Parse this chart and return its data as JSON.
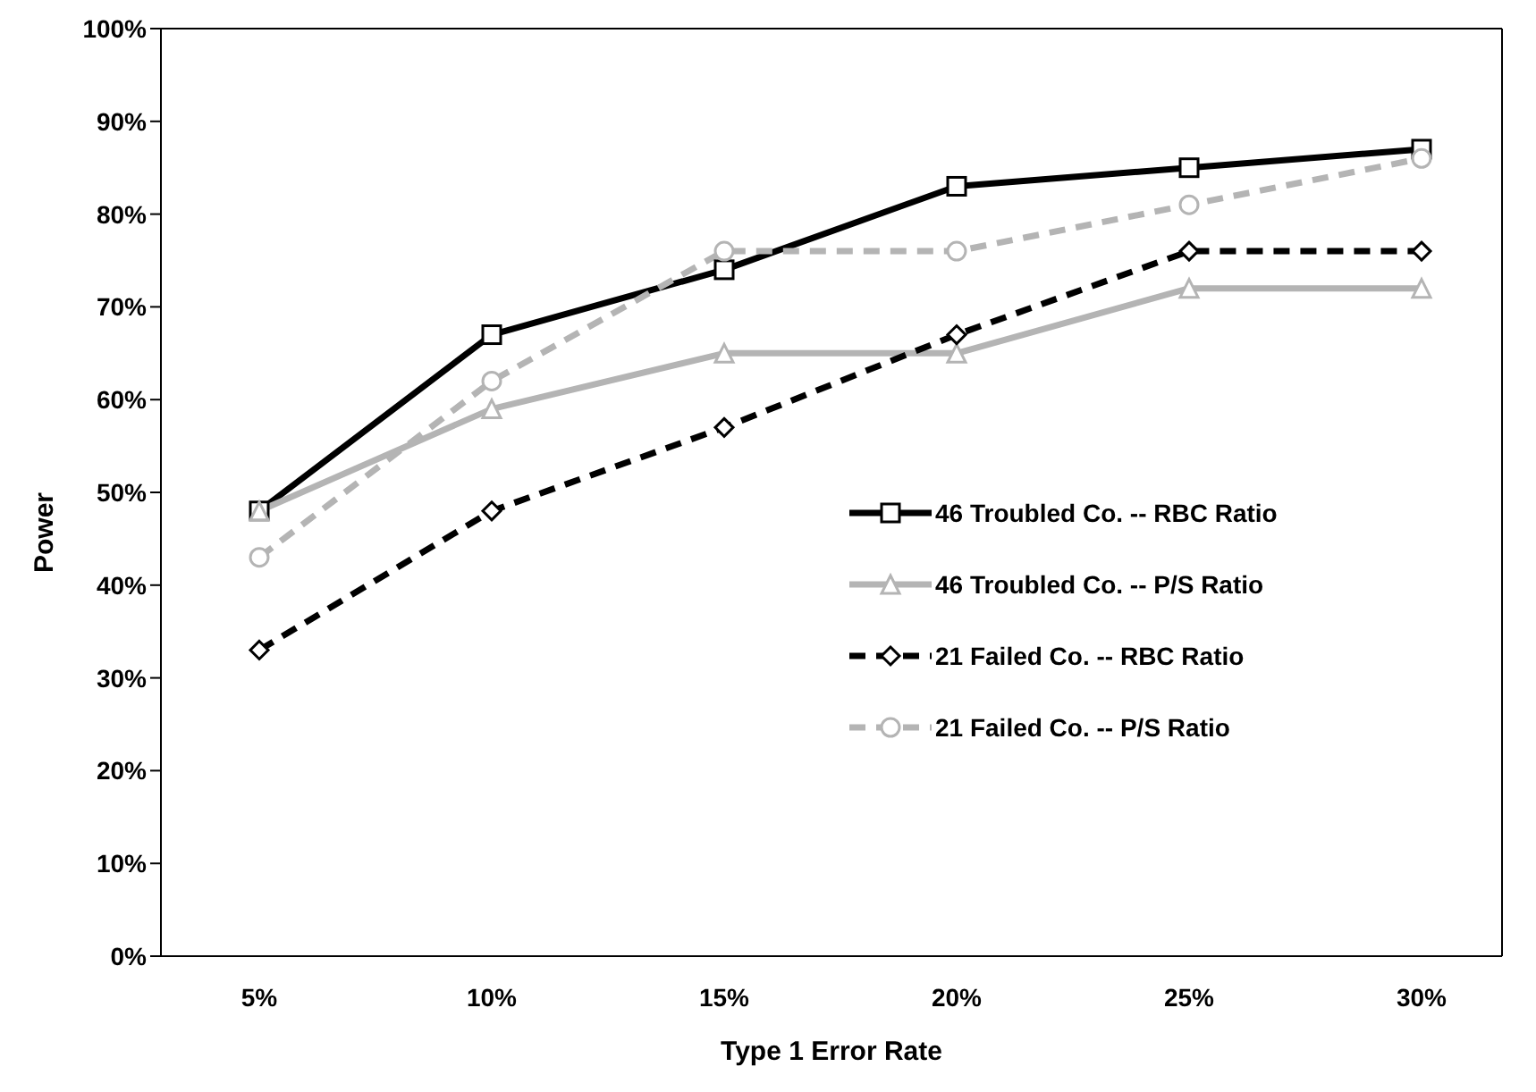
{
  "chart_data": {
    "type": "line",
    "xlabel": "Type 1 Error Rate",
    "ylabel": "Power",
    "categories": [
      "5%",
      "10%",
      "15%",
      "20%",
      "25%",
      "30%"
    ],
    "ylim": [
      0,
      100
    ],
    "yticks": [
      {
        "value": 0,
        "label": "0%"
      },
      {
        "value": 10,
        "label": "10%"
      },
      {
        "value": 20,
        "label": "20%"
      },
      {
        "value": 30,
        "label": "30%"
      },
      {
        "value": 40,
        "label": "40%"
      },
      {
        "value": 50,
        "label": "50%"
      },
      {
        "value": 60,
        "label": "60%"
      },
      {
        "value": 70,
        "label": "70%"
      },
      {
        "value": 80,
        "label": "80%"
      },
      {
        "value": 90,
        "label": "90%"
      },
      {
        "value": 100,
        "label": "100%"
      }
    ],
    "grid": false,
    "legend": "right",
    "series": [
      {
        "name": "46 Troubled Co. -- RBC Ratio",
        "color": "#000000",
        "marker": "square",
        "line_style": "solid",
        "values": [
          48,
          67,
          74,
          83,
          85,
          87
        ]
      },
      {
        "name": "46 Troubled Co. -- P/S Ratio",
        "color": "#b4b4b4",
        "marker": "triangle",
        "line_style": "solid",
        "values": [
          48,
          59,
          65,
          65,
          72,
          72
        ]
      },
      {
        "name": "21 Failed Co. -- RBC Ratio",
        "color": "#000000",
        "marker": "diamond",
        "line_style": "dashed",
        "values": [
          33,
          48,
          57,
          67,
          76,
          76
        ]
      },
      {
        "name": "21 Failed Co. -- P/S Ratio",
        "color": "#b4b4b4",
        "marker": "circle",
        "line_style": "dashed",
        "values": [
          43,
          62,
          76,
          76,
          81,
          86
        ]
      }
    ]
  }
}
